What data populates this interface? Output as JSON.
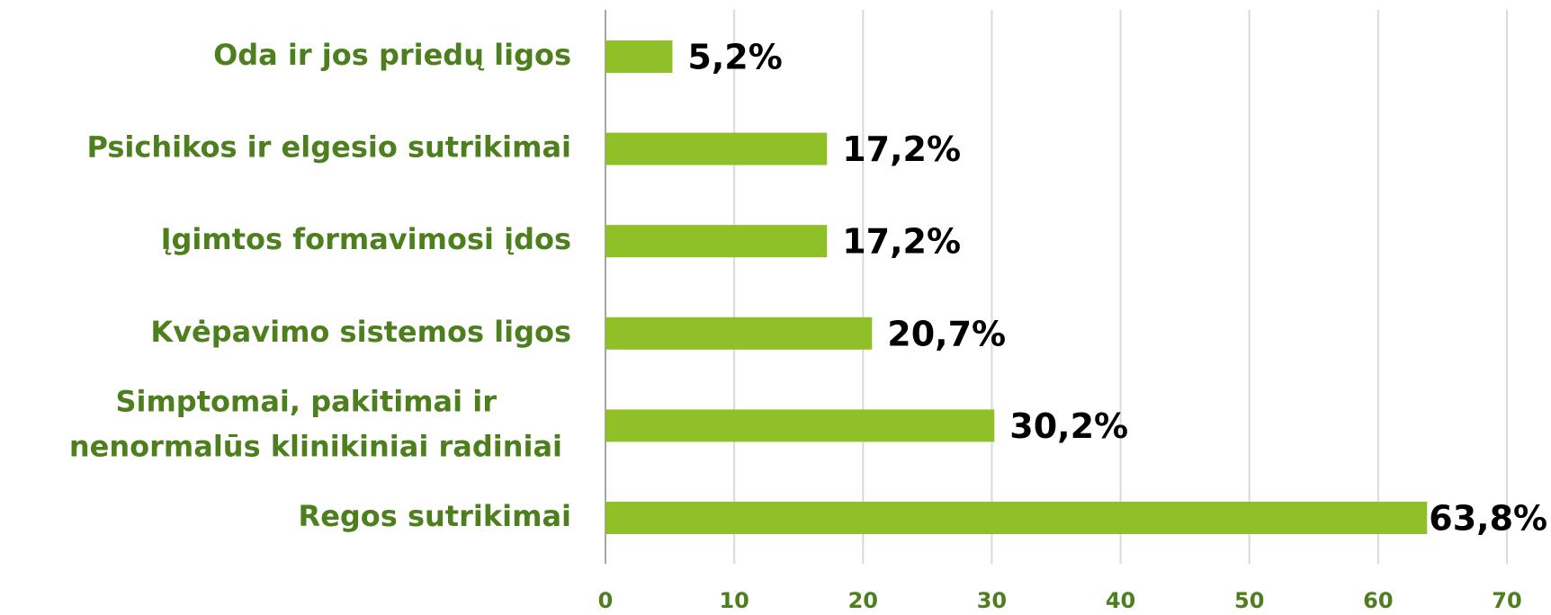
{
  "chart_data": {
    "type": "bar",
    "orientation": "horizontal",
    "categories": [
      "Oda ir jos priedų ligos",
      "Psichikos ir elgesio sutrikimai",
      "Įgimtos formavimosi įdos",
      "Kvėpavimo sistemos ligos",
      [
        "Simptomai, pakitimai ir",
        "nenormalūs klinikiniai radiniai"
      ],
      "Regos sutrikimai"
    ],
    "values": [
      5.2,
      17.2,
      17.2,
      20.7,
      30.2,
      63.8
    ],
    "value_labels": [
      "5,2%",
      "17,2%",
      "17,2%",
      "20,7%",
      "30,2%",
      "63,8%"
    ],
    "color": "#8fc028",
    "xlim": [
      0,
      70
    ],
    "xticks": [
      0,
      10,
      20,
      30,
      40,
      50,
      60,
      70
    ],
    "grid": true
  }
}
